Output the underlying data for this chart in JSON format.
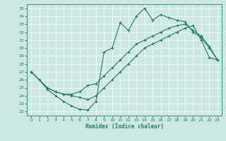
{
  "xlabel": "Humidex (Indice chaleur)",
  "ylabel": "",
  "xlim": [
    -0.5,
    23.5
  ],
  "ylim": [
    21.5,
    35.5
  ],
  "xticks": [
    0,
    1,
    2,
    3,
    4,
    5,
    6,
    7,
    8,
    9,
    10,
    11,
    12,
    13,
    14,
    15,
    16,
    17,
    18,
    19,
    20,
    21,
    22,
    23
  ],
  "yticks": [
    22,
    23,
    24,
    25,
    26,
    27,
    28,
    29,
    30,
    31,
    32,
    33,
    34,
    35
  ],
  "bg_color": "#cce8e0",
  "line_color": "#2a7a6a",
  "grid_color": "#b0d8d0",
  "curve1_x": [
    0,
    1,
    2,
    3,
    4,
    5,
    6,
    7,
    8,
    9,
    10,
    11,
    12,
    13,
    14,
    15,
    16,
    17,
    18,
    19,
    20,
    21,
    22,
    23
  ],
  "curve1_y": [
    27.0,
    26.0,
    24.8,
    24.0,
    23.3,
    22.7,
    22.3,
    22.2,
    23.3,
    29.5,
    30.0,
    33.2,
    32.2,
    34.0,
    35.0,
    33.5,
    34.2,
    33.8,
    33.5,
    33.3,
    32.0,
    31.3,
    30.0,
    28.5
  ],
  "curve2_x": [
    0,
    2,
    3,
    4,
    5,
    6,
    7,
    8,
    9,
    10,
    11,
    12,
    13,
    14,
    15,
    16,
    17,
    18,
    19,
    20,
    21,
    22,
    23
  ],
  "curve2_y": [
    27.0,
    25.0,
    24.5,
    24.2,
    24.2,
    24.5,
    25.3,
    25.5,
    26.5,
    27.5,
    28.5,
    29.5,
    30.5,
    31.0,
    31.5,
    32.0,
    32.5,
    32.8,
    33.0,
    32.2,
    31.5,
    30.2,
    28.5
  ],
  "curve3_x": [
    0,
    2,
    3,
    4,
    5,
    6,
    7,
    8,
    9,
    10,
    11,
    12,
    13,
    14,
    15,
    16,
    17,
    18,
    19,
    20,
    21,
    22,
    23
  ],
  "curve3_y": [
    27.0,
    25.0,
    24.5,
    24.2,
    24.0,
    23.8,
    23.5,
    24.0,
    25.0,
    26.0,
    27.0,
    28.0,
    29.0,
    30.0,
    30.5,
    31.0,
    31.5,
    32.0,
    32.5,
    32.8,
    31.0,
    28.8,
    28.5
  ]
}
